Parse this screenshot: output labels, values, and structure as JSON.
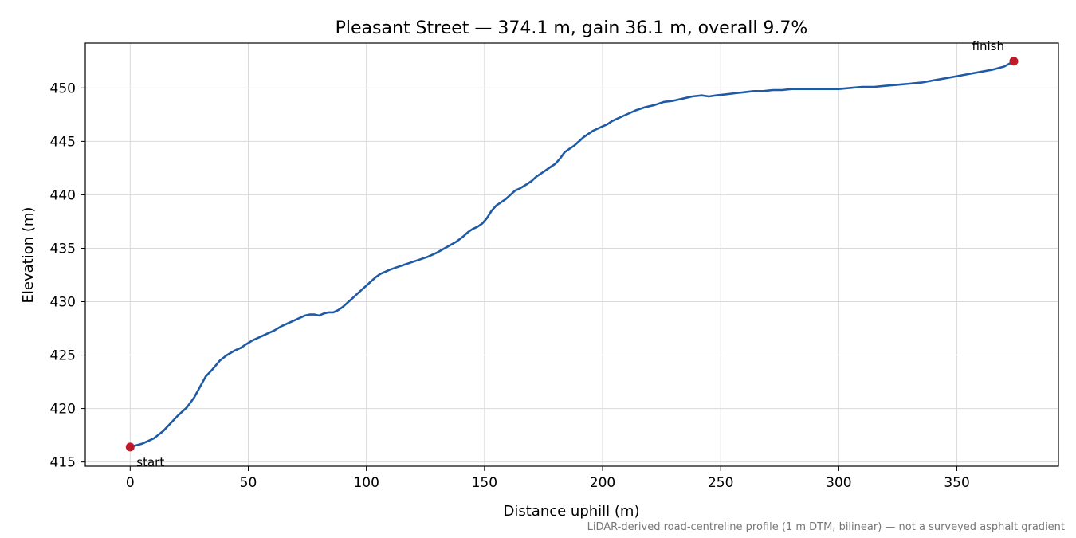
{
  "chart_data": {
    "type": "line",
    "title": "Pleasant Street — 374.1 m, gain 36.1 m, overall 9.7%",
    "xlabel": "Distance uphill (m)",
    "ylabel": "Elevation (m)",
    "xlim": [
      -19,
      393
    ],
    "ylim": [
      414.6,
      454.2
    ],
    "xticks": [
      0,
      50,
      100,
      150,
      200,
      250,
      300,
      350
    ],
    "yticks": [
      415,
      420,
      425,
      430,
      435,
      440,
      445,
      450
    ],
    "grid": true,
    "footnote": "LiDAR-derived road-centreline profile (1 m DTM, bilinear) — not a surveyed asphalt gradient",
    "line_color": "#1f5aa6",
    "marker_color": "#c0192a",
    "series": [
      {
        "x": [
          0,
          5,
          10,
          14,
          17,
          20,
          24,
          27,
          30,
          32,
          35,
          38,
          41,
          44,
          47,
          49,
          52,
          55,
          58,
          61,
          64,
          67,
          70,
          72,
          74,
          76,
          78,
          80,
          82,
          84,
          86,
          88,
          90,
          92,
          94,
          96,
          98,
          100,
          102,
          104,
          106,
          108,
          110,
          114,
          118,
          122,
          126,
          130,
          134,
          138,
          141,
          143,
          145,
          147,
          149,
          151,
          153,
          155,
          157,
          159,
          161,
          163,
          165,
          168,
          170,
          172,
          174,
          176,
          178,
          180,
          182,
          184,
          186,
          188,
          190,
          192,
          194,
          196,
          198,
          200,
          202,
          204,
          206,
          208,
          211,
          214,
          218,
          222,
          226,
          230,
          234,
          238,
          242,
          245,
          248,
          252,
          256,
          260,
          264,
          268,
          272,
          276,
          280,
          284,
          288,
          292,
          296,
          300,
          305,
          310,
          315,
          320,
          325,
          330,
          335,
          340,
          345,
          350,
          355,
          360,
          365,
          370,
          374.1
        ],
        "y": [
          416.4,
          416.7,
          417.2,
          417.9,
          418.6,
          419.3,
          420.1,
          421.0,
          422.2,
          423.0,
          423.7,
          424.5,
          425.0,
          425.4,
          425.7,
          426.0,
          426.4,
          426.7,
          427.0,
          427.3,
          427.7,
          428.0,
          428.3,
          428.5,
          428.7,
          428.8,
          428.8,
          428.7,
          428.9,
          429.0,
          429.0,
          429.2,
          429.5,
          429.9,
          430.3,
          430.7,
          431.1,
          431.5,
          431.9,
          432.3,
          432.6,
          432.8,
          433.0,
          433.3,
          433.6,
          433.9,
          434.2,
          434.6,
          435.1,
          435.6,
          436.1,
          436.5,
          436.8,
          437.0,
          437.3,
          437.8,
          438.5,
          439.0,
          439.3,
          439.6,
          440.0,
          440.4,
          440.6,
          441.0,
          441.3,
          441.7,
          442.0,
          442.3,
          442.6,
          442.9,
          443.4,
          444.0,
          444.3,
          444.6,
          445.0,
          445.4,
          445.7,
          446.0,
          446.2,
          446.4,
          446.6,
          446.9,
          447.1,
          447.3,
          447.6,
          447.9,
          448.2,
          448.4,
          448.7,
          448.8,
          449.0,
          449.2,
          449.3,
          449.2,
          449.3,
          449.4,
          449.5,
          449.6,
          449.7,
          449.7,
          449.8,
          449.8,
          449.9,
          449.9,
          449.9,
          449.9,
          449.9,
          449.9,
          450.0,
          450.1,
          450.1,
          450.2,
          450.3,
          450.4,
          450.5,
          450.7,
          450.9,
          451.1,
          451.3,
          451.5,
          451.7,
          452.0,
          452.5
        ]
      }
    ],
    "annotations": [
      {
        "label": "start",
        "x": 0,
        "y": 416.4
      },
      {
        "label": "finish",
        "x": 374.1,
        "y": 452.5
      }
    ]
  }
}
